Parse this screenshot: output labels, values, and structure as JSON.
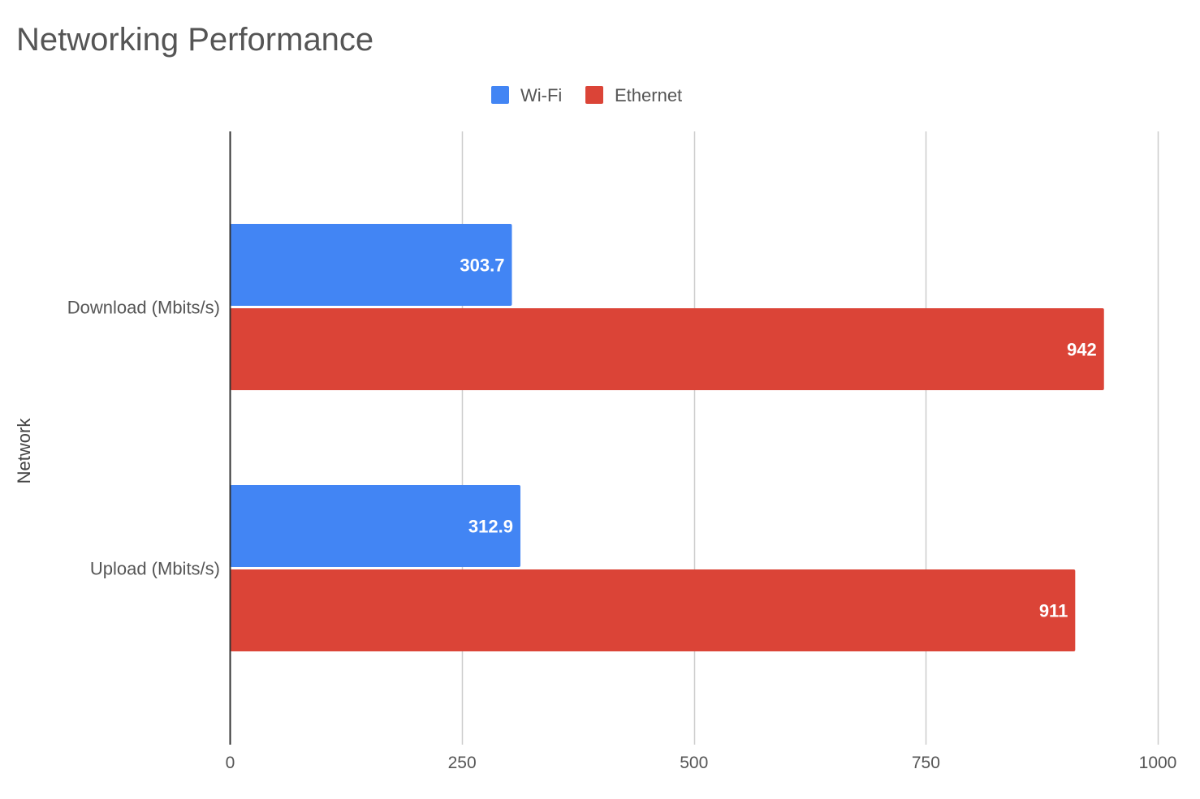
{
  "chart_data": {
    "type": "bar",
    "orientation": "horizontal",
    "title": "Networking Performance",
    "ylabel": "Network",
    "xlabel": "",
    "categories": [
      "Download (Mbits/s)",
      "Upload (Mbits/s)"
    ],
    "series": [
      {
        "name": "Wi-Fi",
        "color": "#4285f4",
        "values": [
          303.7,
          312.9
        ],
        "labels": [
          "303.7",
          "312.9"
        ]
      },
      {
        "name": "Ethernet",
        "color": "#db4437",
        "values": [
          942,
          911
        ],
        "labels": [
          "942",
          "911"
        ]
      }
    ],
    "xlim": [
      0,
      1000
    ],
    "xticks": [
      0,
      250,
      500,
      750,
      1000
    ],
    "xtick_labels": [
      "0",
      "250",
      "500",
      "750",
      "1000"
    ],
    "grid": true,
    "legend_position": "top-center",
    "gridline_color": "#cccccc",
    "axis_color": "#333333"
  }
}
